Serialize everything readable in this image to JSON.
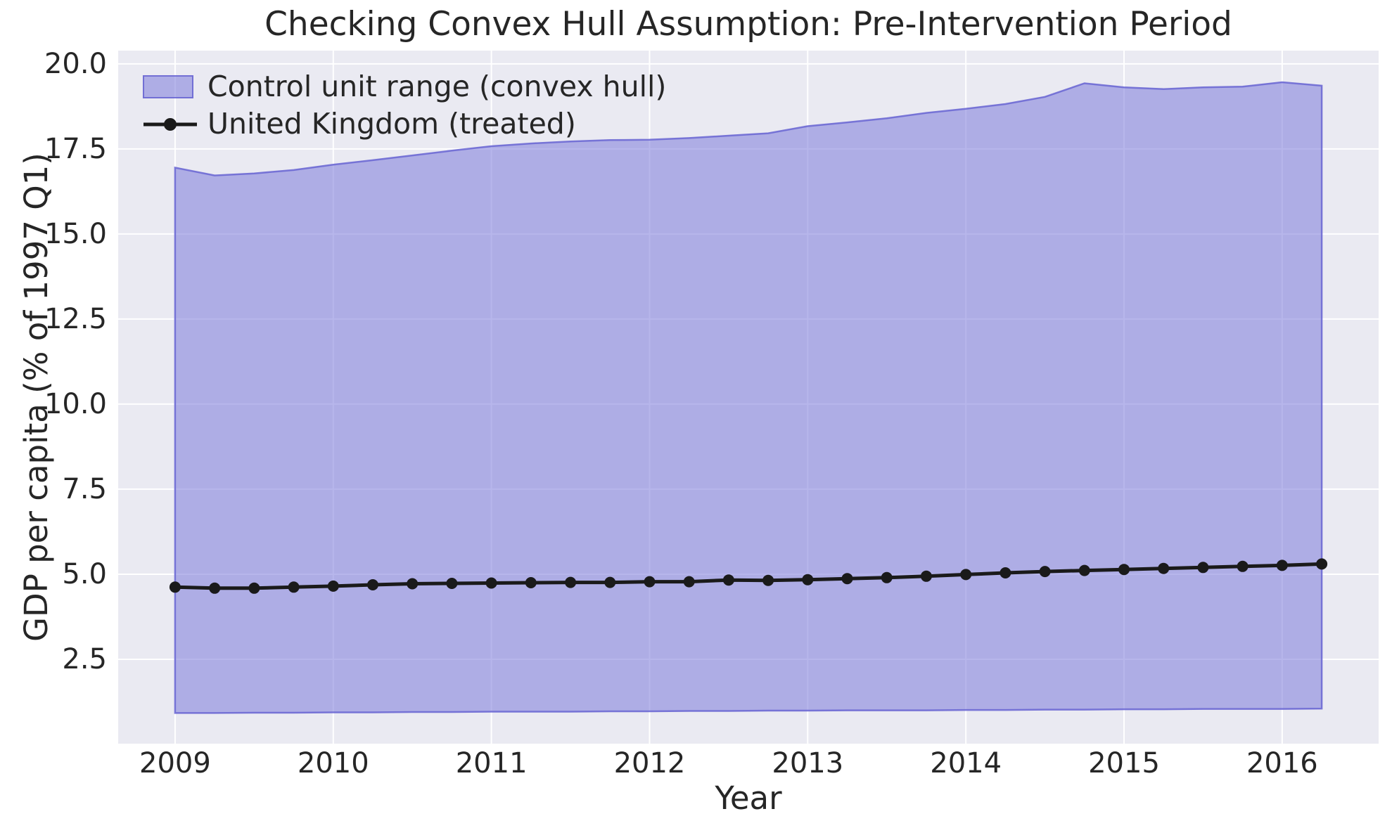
{
  "chart_data": {
    "type": "area",
    "title": "Checking Convex Hull Assumption: Pre-Intervention Period",
    "xlabel": "Year",
    "ylabel": "GDP per capita (% of 1997 Q1)",
    "x": [
      2009.0,
      2009.25,
      2009.5,
      2009.75,
      2010.0,
      2010.25,
      2010.5,
      2010.75,
      2011.0,
      2011.25,
      2011.5,
      2011.75,
      2012.0,
      2012.25,
      2012.5,
      2012.75,
      2013.0,
      2013.25,
      2013.5,
      2013.75,
      2014.0,
      2014.25,
      2014.5,
      2014.75,
      2015.0,
      2015.25,
      2015.5,
      2015.75,
      2016.0,
      2016.25
    ],
    "series": [
      {
        "name": "Control unit range (convex hull)",
        "type": "band",
        "upper": [
          16.95,
          16.72,
          16.78,
          16.88,
          17.04,
          17.17,
          17.31,
          17.45,
          17.58,
          17.66,
          17.72,
          17.76,
          17.77,
          17.82,
          17.89,
          17.96,
          18.17,
          18.28,
          18.4,
          18.56,
          18.68,
          18.82,
          19.03,
          19.43,
          19.31,
          19.26,
          19.31,
          19.33,
          19.46,
          19.36
        ],
        "lower": [
          0.92,
          0.92,
          0.93,
          0.93,
          0.94,
          0.94,
          0.95,
          0.95,
          0.96,
          0.96,
          0.96,
          0.97,
          0.97,
          0.98,
          0.98,
          0.99,
          0.99,
          1.0,
          1.0,
          1.0,
          1.01,
          1.01,
          1.02,
          1.02,
          1.03,
          1.03,
          1.04,
          1.04,
          1.04,
          1.05
        ]
      },
      {
        "name": "United Kingdom (treated)",
        "type": "line",
        "marker": "circle",
        "values": [
          4.62,
          4.59,
          4.59,
          4.62,
          4.65,
          4.69,
          4.72,
          4.73,
          4.74,
          4.75,
          4.76,
          4.76,
          4.78,
          4.78,
          4.83,
          4.82,
          4.84,
          4.87,
          4.9,
          4.94,
          4.99,
          5.04,
          5.08,
          5.11,
          5.14,
          5.17,
          5.2,
          5.23,
          5.26,
          5.3
        ]
      }
    ],
    "xticks": [
      2009,
      2010,
      2011,
      2012,
      2013,
      2014,
      2015,
      2016
    ],
    "yticks": [
      2.5,
      5.0,
      7.5,
      10.0,
      12.5,
      15.0,
      17.5,
      20.0
    ],
    "ytick_labels": [
      "2.5",
      "5.0",
      "7.5",
      "10.0",
      "12.5",
      "15.0",
      "17.5",
      "20.0"
    ],
    "xtick_labels": [
      "2009",
      "2010",
      "2011",
      "2012",
      "2013",
      "2014",
      "2015",
      "2016"
    ],
    "xlim": [
      2008.64,
      2016.61
    ],
    "ylim": [
      0.02,
      20.39
    ],
    "grid": true,
    "legend_position": "upper left",
    "colors": {
      "band_fill": "rgba(124,122,219,0.55)",
      "band_edge": "rgba(103,100,210,0.85)",
      "treated_line": "#1a1a1a",
      "plot_background": "#eaeaf2",
      "gridline": "#ffffff",
      "text": "#262626",
      "figure_background": "#ffffff"
    }
  }
}
